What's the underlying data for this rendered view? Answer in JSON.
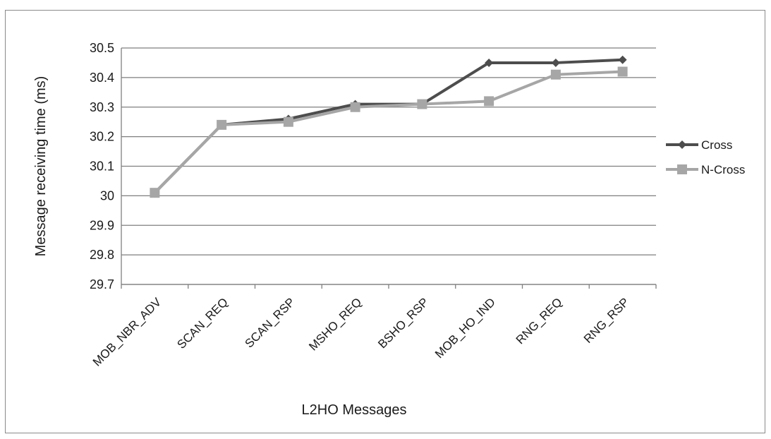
{
  "chart_data": {
    "type": "line",
    "title": "",
    "xlabel": "L2HO Messages",
    "ylabel": "Message receiving time (ms)",
    "ylim": [
      29.7,
      30.5
    ],
    "yticks": [
      "30.5",
      "30.4",
      "30.3",
      "30.2",
      "30.1",
      "30",
      "29.9",
      "29.8",
      "29.7"
    ],
    "categories": [
      "MOB_NBR_ADV",
      "SCAN_REQ",
      "SCAN_RSP",
      "MSHO_REQ",
      "BSHO_RSP",
      "MOB_HO_IND",
      "RNG_REQ",
      "RNG_RSP"
    ],
    "grid": "horizontal",
    "legend_position": "right",
    "series": [
      {
        "name": "Cross",
        "color": "#4d4d4d",
        "marker": "diamond",
        "values": [
          30.01,
          30.24,
          30.26,
          30.31,
          30.31,
          30.45,
          30.45,
          30.46
        ]
      },
      {
        "name": "N-Cross",
        "color": "#a6a6a6",
        "marker": "square",
        "values": [
          30.01,
          30.24,
          30.25,
          30.3,
          30.31,
          30.32,
          30.41,
          30.42
        ]
      }
    ]
  }
}
